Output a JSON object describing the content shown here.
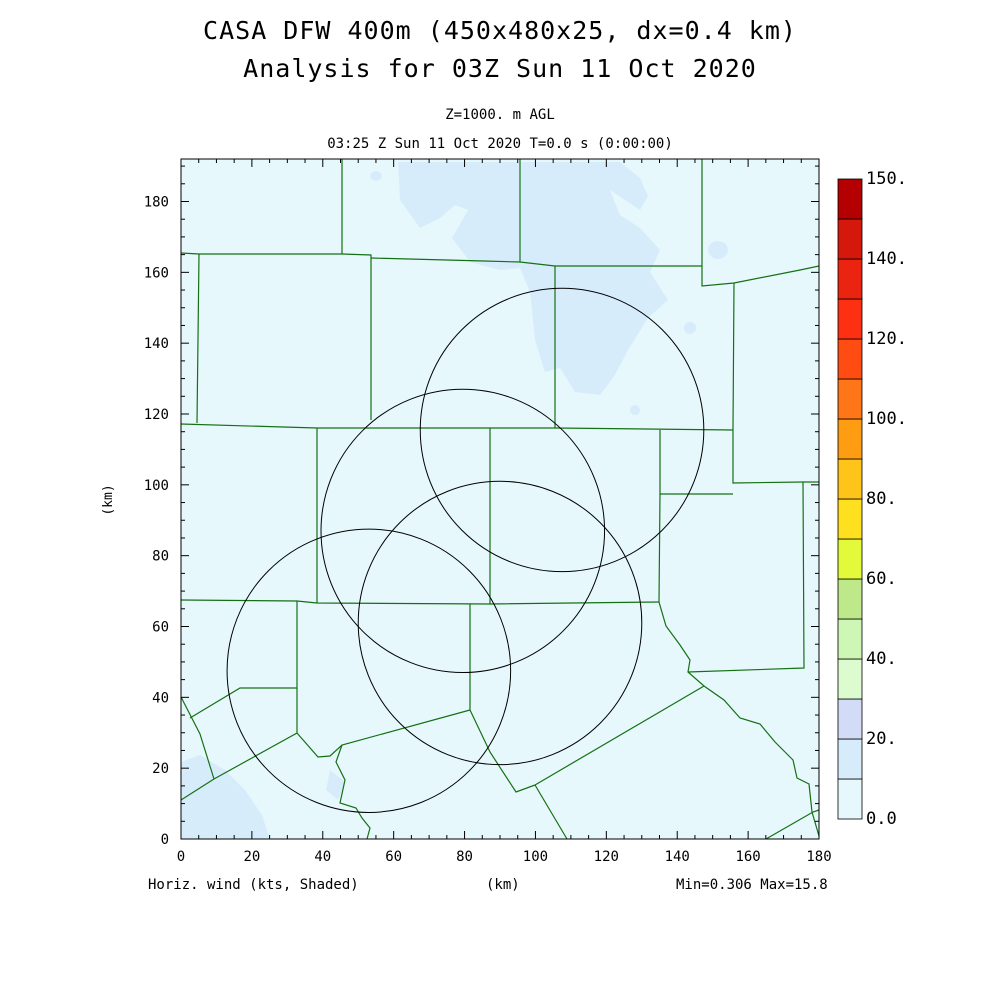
{
  "title": {
    "line1": "CASA DFW 400m (450x480x25, dx=0.4 km)",
    "line2": "Analysis for 03Z Sun 11 Oct 2020"
  },
  "subtitle": {
    "level": "Z=1000. m AGL",
    "time": "03:25 Z Sun 11 Oct 2020   T=0.0 s (0:00:00)"
  },
  "axes": {
    "xlabel": "(km)",
    "ylabel": "(km)",
    "xticks": [
      "0",
      "20",
      "40",
      "60",
      "80",
      "100",
      "120",
      "140",
      "160",
      "180"
    ],
    "yticks": [
      "0",
      "20",
      "40",
      "60",
      "80",
      "100",
      "120",
      "140",
      "160",
      "180"
    ],
    "xlim": [
      0,
      180
    ],
    "ylim": [
      0,
      192
    ]
  },
  "footer": {
    "left": "Horiz. wind (kts, Shaded)",
    "center": "(km)",
    "right": "Min=0.306 Max=15.8"
  },
  "colorbar": {
    "colors": [
      "#e6f8fc",
      "#d7ecfb",
      "#d3dcf6",
      "#dcfcd0",
      "#cef6b4",
      "#bde98a",
      "#e2fa3a",
      "#ffe01e",
      "#ffc41a",
      "#fe9c12",
      "#fe7618",
      "#fe4c12",
      "#fe3012",
      "#ea2410",
      "#d4180c",
      "#b40000"
    ],
    "labels": [
      "0.0",
      "20.",
      "40.",
      "60.",
      "80.",
      "100.",
      "120.",
      "140.",
      "150."
    ]
  },
  "map": {
    "background_color": "#e6f8fc",
    "shading_color": "#d7ecfb",
    "county_line_color": "#157015",
    "radar_ring_color": "#000000",
    "radar_rings": [
      {
        "name": "ring-ne",
        "center_km": [
          107.5,
          115.5
        ],
        "radius_km": 40
      },
      {
        "name": "ring-center",
        "center_km": [
          79.5,
          87
        ],
        "radius_km": 40
      },
      {
        "name": "ring-se",
        "center_km": [
          90,
          61
        ],
        "radius_km": 40
      },
      {
        "name": "ring-sw",
        "center_km": [
          53,
          47.5
        ],
        "radius_km": 40
      }
    ]
  }
}
